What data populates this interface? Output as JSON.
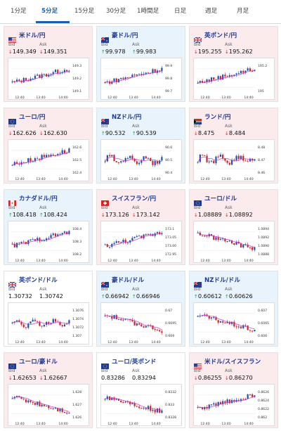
{
  "tabs": [
    "1分足",
    "5分足",
    "15分足",
    "30分足",
    "1時間足",
    "日足",
    "週足",
    "月足"
  ],
  "active_tab": 1,
  "labels": {
    "bid": "Bid",
    "ask": "Ask"
  },
  "colors": {
    "up": "#1f9d55",
    "down": "#d3202a",
    "candle_up": "#1f4fb3",
    "candle_down": "#d3202a",
    "ma_line": "#cc33cc",
    "title": "#1f3a93",
    "active_tab": "#1a5fb4"
  },
  "cards": [
    {
      "name": "米ドル/円",
      "flag": "us",
      "bg": "red",
      "bid_dir": "down",
      "bid": "149.349",
      "ask_dir": "down",
      "ask": "149.351",
      "y_ticks": [
        "149.3",
        "149.2",
        "149.1"
      ],
      "x_ticks": [
        "12:40",
        "13:40",
        "14:40"
      ],
      "trend": "up"
    },
    {
      "name": "豪ドル/円",
      "flag": "au",
      "bg": "blue",
      "bid_dir": "up",
      "bid": "99.978",
      "ask_dir": "up",
      "ask": "99.983",
      "y_ticks": [
        "99.9",
        "99.8",
        "99.7"
      ],
      "x_ticks": [
        "12:40",
        "13:40",
        "14:40"
      ],
      "trend": "up"
    },
    {
      "name": "英ポンド/円",
      "flag": "uk",
      "bg": "red",
      "bid_dir": "down",
      "bid": "195.255",
      "ask_dir": "down",
      "ask": "195.262",
      "y_ticks": [
        "195.2",
        "195"
      ],
      "x_ticks": [
        "12:40",
        "13:40",
        "14:40"
      ],
      "trend": "up"
    },
    {
      "name": "ユーロ/円",
      "flag": "eu",
      "bg": "red",
      "bid_dir": "down",
      "bid": "162.626",
      "ask_dir": "down",
      "ask": "162.630",
      "y_ticks": [
        "162.6",
        "162.5",
        "162.4"
      ],
      "x_ticks": [
        "12:40",
        "13:40",
        "14:40"
      ],
      "trend": "up"
    },
    {
      "name": "NZドル/円",
      "flag": "nz",
      "bg": "blue",
      "bid_dir": "up",
      "bid": "90.532",
      "ask_dir": "up",
      "ask": "90.539",
      "y_ticks": [
        "90.6",
        "90.5",
        "90.4"
      ],
      "x_ticks": [
        "12:40",
        "13:40",
        "14:40"
      ],
      "trend": "flat"
    },
    {
      "name": "ランド/円",
      "flag": "za",
      "bg": "red",
      "bid_dir": "down",
      "bid": "8.475",
      "ask_dir": "down",
      "ask": "8.484",
      "y_ticks": [
        "8.48",
        "8.47",
        "8.46"
      ],
      "x_ticks": [
        "12:40",
        "13:40",
        "14:40"
      ],
      "trend": "flat"
    },
    {
      "name": "カナダドル/円",
      "flag": "ca",
      "bg": "blue",
      "bid_dir": "up",
      "bid": "108.418",
      "ask_dir": "up",
      "ask": "108.424",
      "y_ticks": [
        "108.4",
        "108.3",
        "108.2"
      ],
      "x_ticks": [
        "12:40",
        "13:40",
        "14:40"
      ],
      "trend": "up"
    },
    {
      "name": "スイスフラン/円",
      "flag": "ch",
      "bg": "red",
      "bid_dir": "down",
      "bid": "173.126",
      "ask_dir": "down",
      "ask": "173.142",
      "y_ticks": [
        "173.1",
        "173.05",
        "173.00",
        "172.95"
      ],
      "x_ticks": [
        "12:40",
        "13:40",
        "14:40"
      ],
      "trend": "up"
    },
    {
      "name": "ユーロ/ドル",
      "flag": "eu",
      "bg": "red",
      "bid_dir": "down",
      "bid": "1.08889",
      "ask_dir": "down",
      "ask": "1.08892",
      "y_ticks": [
        "1.0894",
        "1.0892",
        "1.0890",
        "1.0888"
      ],
      "x_ticks": [
        "12:40",
        "13:40",
        "14:40"
      ],
      "trend": "down"
    },
    {
      "name": "英ポンド/ドル",
      "flag": "uk",
      "bg": "white",
      "bid_dir": "none",
      "bid": "1.30732",
      "ask_dir": "none",
      "ask": "1.30742",
      "y_ticks": [
        "1.3076",
        "1.3074",
        "1.3072",
        "1.307"
      ],
      "x_ticks": [
        "12:40",
        "13:40",
        "14:40"
      ],
      "trend": "flat"
    },
    {
      "name": "豪ドル/ドル",
      "flag": "au",
      "bg": "blue",
      "bid_dir": "up",
      "bid": "0.66942",
      "ask_dir": "up",
      "ask": "0.66946",
      "y_ticks": [
        "0.67",
        "0.6695",
        "0.669"
      ],
      "x_ticks": [
        "12:40",
        "13:40",
        "14:40"
      ],
      "trend": "down"
    },
    {
      "name": "NZドル/ドル",
      "flag": "nz",
      "bg": "blue",
      "bid_dir": "up",
      "bid": "0.60612",
      "ask_dir": "up",
      "ask": "0.60626",
      "y_ticks": [
        "0.607",
        "0.6065",
        "0.606"
      ],
      "x_ticks": [
        "12:40",
        "13:40",
        "14:40"
      ],
      "trend": "down"
    },
    {
      "name": "ユーロ/豪ドル",
      "flag": "eu",
      "bg": "red",
      "bid_dir": "down",
      "bid": "1.62653",
      "ask_dir": "down",
      "ask": "1.62667",
      "y_ticks": [
        "1.628",
        "1.627",
        "1.626"
      ],
      "x_ticks": [
        "12:40",
        "13:40",
        "14:40"
      ],
      "trend": "down"
    },
    {
      "name": "ユーロ/英ポンド",
      "flag": "eu",
      "bg": "white",
      "bid_dir": "none",
      "bid": "0.83286",
      "ask_dir": "none",
      "ask": "0.83294",
      "y_ticks": [
        "0.8332",
        "0.833",
        "0.8328"
      ],
      "x_ticks": [
        "12:40",
        "13:40",
        "14:40"
      ],
      "trend": "down"
    },
    {
      "name": "米ドル/スイスフラン",
      "flag": "us",
      "bg": "red",
      "bid_dir": "down",
      "bid": "0.86255",
      "ask_dir": "down",
      "ask": "0.86270",
      "y_ticks": [
        "0.8626",
        "0.8624",
        "0.8622",
        "0.862"
      ],
      "x_ticks": [
        "12:40",
        "13:40",
        "14:40"
      ],
      "trend": "up"
    }
  ]
}
